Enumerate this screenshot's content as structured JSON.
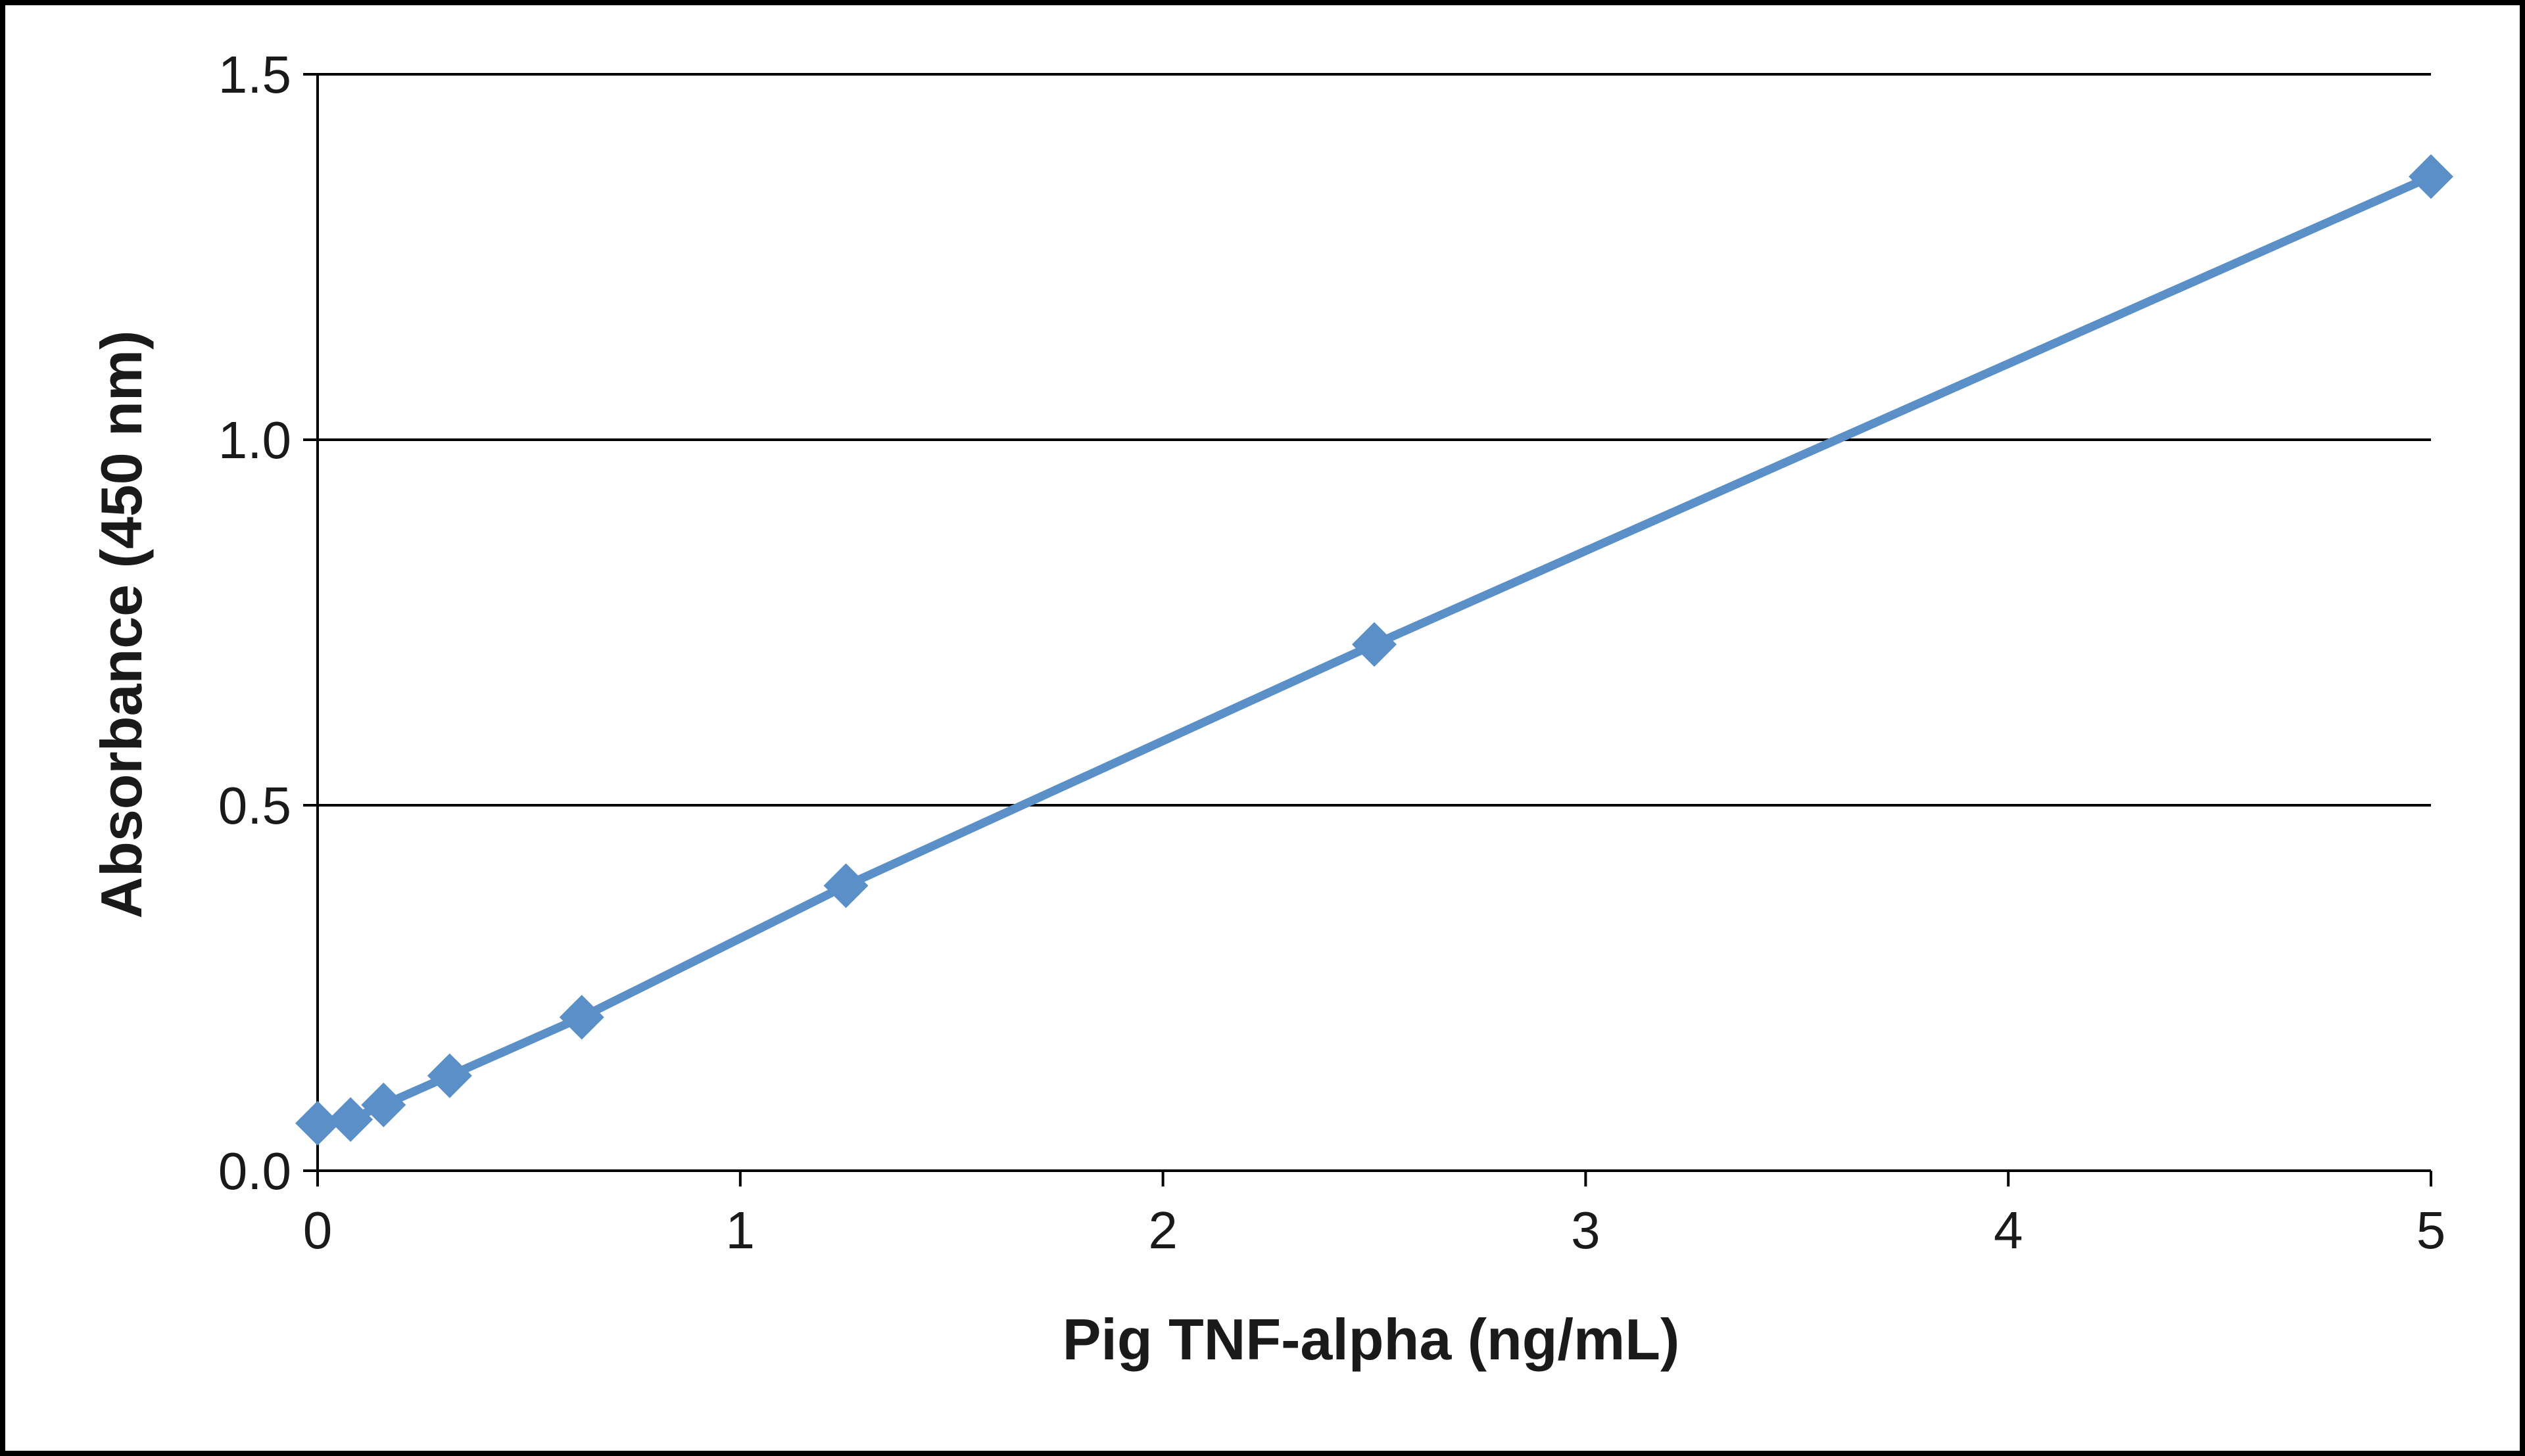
{
  "chart_data": {
    "type": "line",
    "title": "",
    "xlabel": "Pig TNF-alpha (ng/mL)",
    "ylabel": "Absorbance  (450 nm)",
    "xlim": [
      0,
      5
    ],
    "ylim": [
      0,
      1.5
    ],
    "x_ticks": [
      "0",
      "1",
      "2",
      "3",
      "4",
      "5"
    ],
    "y_ticks": [
      "0.0",
      "0.5",
      "1.0",
      "1.5"
    ],
    "grid": "horizontal",
    "legend": "none",
    "series": [
      {
        "color": "#5b8fc7",
        "marker": "diamond",
        "x": [
          0,
          0.078,
          0.156,
          0.3125,
          0.625,
          1.25,
          2.5,
          5
        ],
        "y": [
          0.065,
          0.07,
          0.09,
          0.13,
          0.21,
          0.39,
          0.72,
          1.36
        ]
      }
    ]
  }
}
